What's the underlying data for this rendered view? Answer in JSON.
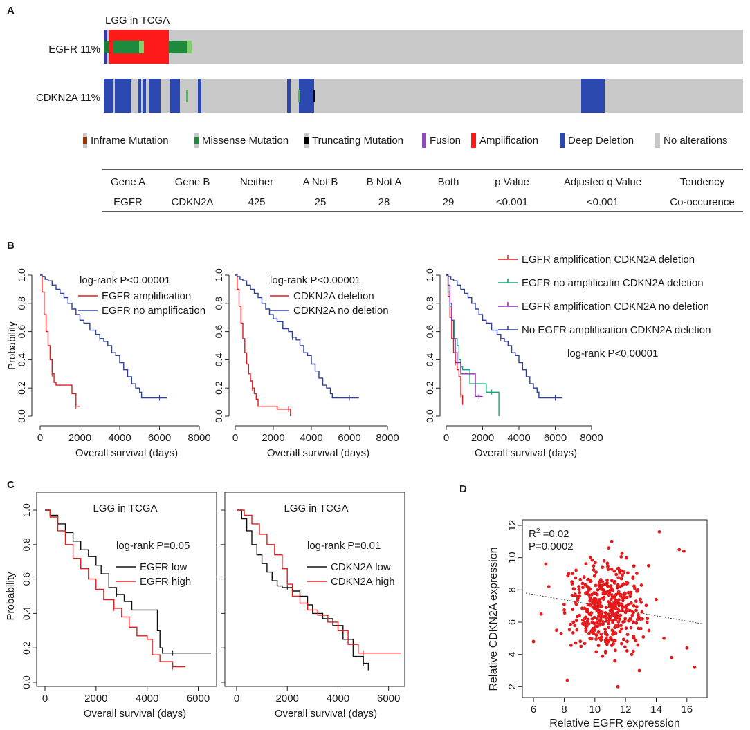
{
  "panel_a": {
    "label": "A",
    "title": "LGG in TCGA",
    "tracks": [
      {
        "label": "EGFR 11%"
      },
      {
        "label": "CDKN2A 11%"
      }
    ],
    "legend": [
      "Inframe Mutation",
      "Missense Mutation",
      "Truncating Mutation",
      "Fusion",
      "Amplification",
      "Deep Deletion",
      "No alterations"
    ],
    "colors": {
      "inframe": "#993404",
      "missense": "#008000",
      "missense_light": "#7fc97f",
      "truncating": "#000000",
      "fusion": "#8b4fb3",
      "amplification": "#ff1a1a",
      "deep_deletion": "#2b47b0",
      "no_alteration": "#c8c8c8"
    },
    "table": {
      "headers": [
        "Gene A",
        "Gene B",
        "Neither",
        "A Not  B",
        "B Not  A",
        "Both",
        "p Value",
        "Adjusted q Value",
        "Tendency"
      ],
      "row": [
        "EGFR",
        "CDKN2A",
        "425",
        "25",
        "28",
        "29",
        "<0.001",
        "<0.001",
        "Co-occurence"
      ]
    }
  },
  "panel_b": {
    "label": "B"
  },
  "panel_c": {
    "label": "C"
  },
  "panel_d": {
    "label": "D"
  },
  "chart_data": [
    {
      "id": "B1",
      "type": "line",
      "xlabel": "Overall survival (days)",
      "ylabel": "Probability",
      "xlim": [
        0,
        8000
      ],
      "ylim": [
        0,
        1
      ],
      "xticks": [
        "0",
        "2000",
        "4000",
        "6000",
        "8000"
      ],
      "yticks": [
        "0.0",
        "0.2",
        "0.4",
        "0.6",
        "0.8",
        "1.0"
      ],
      "annotation": "log-rank P<0.00001",
      "series": [
        {
          "name": "EGFR amplification",
          "color": "#e41a1c",
          "x": [
            0,
            100,
            200,
            300,
            400,
            500,
            600,
            700,
            800,
            1500,
            1600,
            1800,
            2000
          ],
          "y": [
            1.0,
            0.88,
            0.72,
            0.6,
            0.5,
            0.4,
            0.3,
            0.24,
            0.22,
            0.22,
            0.16,
            0.07,
            0.07
          ]
        },
        {
          "name": "EGFR no amplification",
          "color": "#2c3e9e",
          "x": [
            0,
            100,
            250,
            400,
            600,
            800,
            1000,
            1200,
            1400,
            1600,
            1800,
            2000,
            2200,
            2500,
            2800,
            3000,
            3200,
            3400,
            3600,
            3800,
            4000,
            4200,
            4400,
            4600,
            4800,
            5000,
            5100,
            5500,
            6000,
            6400
          ],
          "y": [
            1.0,
            0.99,
            0.97,
            0.96,
            0.93,
            0.9,
            0.87,
            0.84,
            0.8,
            0.76,
            0.72,
            0.68,
            0.66,
            0.61,
            0.58,
            0.55,
            0.53,
            0.5,
            0.45,
            0.43,
            0.38,
            0.33,
            0.28,
            0.23,
            0.2,
            0.17,
            0.13,
            0.13,
            0.13,
            0.13
          ]
        }
      ]
    },
    {
      "id": "B2",
      "type": "line",
      "xlabel": "Overall survival (days)",
      "ylabel": "",
      "xlim": [
        0,
        8000
      ],
      "ylim": [
        0,
        1
      ],
      "xticks": [
        "0",
        "2000",
        "4000",
        "6000",
        "8000"
      ],
      "yticks": [
        "0.0",
        "0.2",
        "0.4",
        "0.6",
        "0.8",
        "1.0"
      ],
      "annotation": "log-rank P<0.00001",
      "series": [
        {
          "name": "CDKN2A deletion",
          "color": "#e41a1c",
          "x": [
            0,
            100,
            200,
            300,
            400,
            500,
            600,
            700,
            800,
            900,
            1000,
            1100,
            1200,
            1400,
            2000,
            2200,
            2800,
            2900
          ],
          "y": [
            1.0,
            0.9,
            0.78,
            0.66,
            0.55,
            0.45,
            0.37,
            0.3,
            0.25,
            0.2,
            0.16,
            0.12,
            0.07,
            0.07,
            0.07,
            0.05,
            0.05,
            0.0
          ]
        },
        {
          "name": "CDKN2A no deletion",
          "color": "#2c3e9e",
          "x": [
            0,
            100,
            250,
            400,
            600,
            800,
            1000,
            1200,
            1400,
            1600,
            1800,
            2000,
            2200,
            2500,
            2800,
            3000,
            3200,
            3400,
            3600,
            3800,
            4000,
            4200,
            4400,
            4600,
            4800,
            5000,
            5100,
            5500,
            6000,
            6500
          ],
          "y": [
            1.0,
            0.99,
            0.97,
            0.96,
            0.93,
            0.9,
            0.87,
            0.84,
            0.8,
            0.76,
            0.72,
            0.69,
            0.67,
            0.62,
            0.6,
            0.56,
            0.54,
            0.5,
            0.45,
            0.43,
            0.37,
            0.32,
            0.27,
            0.22,
            0.2,
            0.16,
            0.13,
            0.13,
            0.13,
            0.13
          ]
        }
      ]
    },
    {
      "id": "B3",
      "type": "line",
      "xlabel": "Overall survival (days)",
      "ylabel": "",
      "xlim": [
        0,
        8000
      ],
      "ylim": [
        0,
        1
      ],
      "xticks": [
        "0",
        "2000",
        "4000",
        "6000",
        "8000"
      ],
      "yticks": [
        "0.0",
        "0.2",
        "0.4",
        "0.6",
        "0.8",
        "1.0"
      ],
      "annotation": "log-rank P<0.00001",
      "series": [
        {
          "name": "EGFR amplification CDKN2A deletion",
          "color": "#e41a1c",
          "x": [
            0,
            100,
            200,
            300,
            400,
            500,
            600,
            700,
            800,
            900
          ],
          "y": [
            1.0,
            0.85,
            0.7,
            0.55,
            0.45,
            0.38,
            0.33,
            0.28,
            0.15,
            0.08
          ]
        },
        {
          "name": "EGFR no amplificatin CDKN2A deletion",
          "color": "#17a673",
          "x": [
            0,
            100,
            200,
            300,
            450,
            600,
            700,
            800,
            900,
            1100,
            1300,
            1500,
            2200,
            2500,
            2900
          ],
          "y": [
            1.0,
            0.88,
            0.78,
            0.68,
            0.55,
            0.5,
            0.4,
            0.35,
            0.33,
            0.33,
            0.23,
            0.23,
            0.17,
            0.17,
            0.0
          ]
        },
        {
          "name": "EGFR amplification CDKN2A no deletion",
          "color": "#8e2db3",
          "x": [
            0,
            100,
            200,
            300,
            400,
            500,
            600,
            800,
            1000,
            1500,
            1600,
            1800,
            2000
          ],
          "y": [
            1.0,
            0.93,
            0.8,
            0.68,
            0.55,
            0.45,
            0.38,
            0.3,
            0.3,
            0.3,
            0.14,
            0.14,
            0.14
          ]
        },
        {
          "name": "No EGFR amplification CDKN2A deletion",
          "color": "#2c3e9e",
          "x": [
            0,
            100,
            250,
            400,
            600,
            800,
            1000,
            1200,
            1400,
            1600,
            1800,
            2000,
            2200,
            2500,
            2800,
            3000,
            3200,
            3400,
            3600,
            3800,
            4000,
            4200,
            4400,
            4600,
            4800,
            5000,
            5100,
            5500,
            6000,
            6400
          ],
          "y": [
            1.0,
            0.99,
            0.97,
            0.96,
            0.93,
            0.9,
            0.87,
            0.84,
            0.8,
            0.76,
            0.72,
            0.68,
            0.66,
            0.61,
            0.58,
            0.55,
            0.53,
            0.5,
            0.45,
            0.43,
            0.38,
            0.33,
            0.28,
            0.23,
            0.2,
            0.17,
            0.13,
            0.13,
            0.13,
            0.13
          ]
        }
      ]
    },
    {
      "id": "C1",
      "type": "line",
      "title": "LGG in TCGA",
      "xlabel": "Overall survival (days)",
      "ylabel": "Probability",
      "xlim": [
        0,
        6500
      ],
      "ylim": [
        0,
        1
      ],
      "xticks": [
        "0",
        "2000",
        "4000",
        "6000"
      ],
      "yticks": [
        "0.0",
        "0.2",
        "0.4",
        "0.6",
        "0.8",
        "1.0"
      ],
      "annotation": "log-rank P=0.05",
      "series": [
        {
          "name": "EGFR low",
          "color": "#111111",
          "x": [
            0,
            200,
            500,
            800,
            1100,
            1400,
            1700,
            2000,
            2200,
            2500,
            2800,
            3100,
            3400,
            3700,
            4100,
            4400,
            4500,
            4600,
            5000,
            6500
          ],
          "y": [
            1.0,
            0.97,
            0.92,
            0.87,
            0.82,
            0.77,
            0.73,
            0.68,
            0.63,
            0.55,
            0.51,
            0.47,
            0.42,
            0.42,
            0.42,
            0.3,
            0.2,
            0.17,
            0.17,
            0.17
          ]
        },
        {
          "name": "EGFR high",
          "color": "#e41a1c",
          "x": [
            0,
            200,
            500,
            800,
            1100,
            1400,
            1700,
            2000,
            2300,
            2700,
            3000,
            3300,
            3600,
            4000,
            4200,
            4500,
            5000,
            5500
          ],
          "y": [
            1.0,
            0.96,
            0.88,
            0.8,
            0.72,
            0.66,
            0.6,
            0.54,
            0.48,
            0.43,
            0.38,
            0.32,
            0.27,
            0.25,
            0.16,
            0.12,
            0.09,
            0.09
          ]
        }
      ]
    },
    {
      "id": "C2",
      "type": "line",
      "title": "LGG in TCGA",
      "xlabel": "Overall survival (days)",
      "ylabel": "",
      "xlim": [
        0,
        6500
      ],
      "ylim": [
        0,
        1
      ],
      "xticks": [
        "0",
        "2000",
        "4000",
        "6000"
      ],
      "yticks": [
        "0.0",
        "0.2",
        "0.4",
        "0.6",
        "0.8",
        "1.0"
      ],
      "annotation": "log-rank P=0.01",
      "series": [
        {
          "name": "CDKN2A low",
          "color": "#111111",
          "x": [
            0,
            200,
            400,
            600,
            800,
            1000,
            1200,
            1400,
            1600,
            1800,
            2000,
            2200,
            2500,
            2800,
            3000,
            3400,
            3800,
            4200,
            4600,
            5000,
            5200
          ],
          "y": [
            1.0,
            0.95,
            0.88,
            0.8,
            0.74,
            0.69,
            0.64,
            0.59,
            0.56,
            0.55,
            0.55,
            0.53,
            0.5,
            0.45,
            0.4,
            0.37,
            0.33,
            0.25,
            0.15,
            0.11,
            0.07
          ]
        },
        {
          "name": "CDKN2A high",
          "color": "#e41a1c",
          "x": [
            0,
            300,
            600,
            900,
            1200,
            1500,
            1800,
            2000,
            2200,
            2500,
            2800,
            3200,
            3600,
            4000,
            4400,
            4800,
            5000,
            6500
          ],
          "y": [
            1.0,
            0.97,
            0.92,
            0.86,
            0.8,
            0.74,
            0.66,
            0.57,
            0.5,
            0.46,
            0.42,
            0.39,
            0.35,
            0.3,
            0.22,
            0.17,
            0.17,
            0.17
          ]
        }
      ]
    },
    {
      "id": "D",
      "type": "scatter",
      "xlabel": "Relative EGFR expression",
      "ylabel": "Relative CDKN2A expression",
      "xlim": [
        5.5,
        17
      ],
      "ylim": [
        1.5,
        12
      ],
      "xticks": [
        "6",
        "8",
        "10",
        "12",
        "14",
        "16"
      ],
      "yticks": [
        "2",
        "4",
        "6",
        "8",
        "10",
        "12"
      ],
      "r2_base": "R",
      "r2_sup": "2",
      "r2_value": " =0.02",
      "p_text": "P=0.0002",
      "color": "#e41a1c",
      "trend": {
        "x": [
          5.5,
          17
        ],
        "y": [
          7.8,
          5.9
        ]
      },
      "points_x": [
        6.0,
        6.5,
        7.0,
        7.5,
        8.0,
        8.3,
        8.6,
        8.9,
        9.1,
        9.3,
        9.5,
        9.7,
        9.9,
        10.1,
        10.3,
        10.5,
        10.7,
        10.9,
        11.1,
        11.3,
        11.5,
        11.7,
        11.9,
        12.1,
        12.3,
        12.5,
        12.8,
        13.1,
        13.5,
        14.0,
        14.5,
        15.0,
        15.5,
        16.0,
        16.5,
        9.4,
        10.2,
        10.8,
        11.4,
        12.0,
        10.6,
        11.2,
        9.8,
        12.6,
        11.0,
        10.4,
        11.6,
        9.6,
        12.2,
        13.0,
        10.0,
        11.8,
        8.8,
        12.4,
        10.9,
        11.3,
        9.2,
        13.4,
        7.8,
        14.2,
        15.8,
        6.8,
        8.2,
        11.5,
        10.7,
        12.9
      ],
      "points_y": [
        4.8,
        6.5,
        8.2,
        5.5,
        7.1,
        9.0,
        6.0,
        7.5,
        4.5,
        8.8,
        6.8,
        10.0,
        7.3,
        5.2,
        8.5,
        9.4,
        6.4,
        7.9,
        11.0,
        7.0,
        8.3,
        5.8,
        9.1,
        6.7,
        7.6,
        4.2,
        8.0,
        6.2,
        9.5,
        7.4,
        5.0,
        3.8,
        10.5,
        4.4,
        3.2,
        7.8,
        6.9,
        8.6,
        7.2,
        6.6,
        9.8,
        5.4,
        7.7,
        8.1,
        6.3,
        4.9,
        9.2,
        5.9,
        7.1,
        5.6,
        8.9,
        7.5,
        6.1,
        4.0,
        10.6,
        3.6,
        8.4,
        6.0,
        5.3,
        11.6,
        10.4,
        9.6,
        2.4,
        2.0,
        4.1,
        3.0
      ]
    }
  ]
}
